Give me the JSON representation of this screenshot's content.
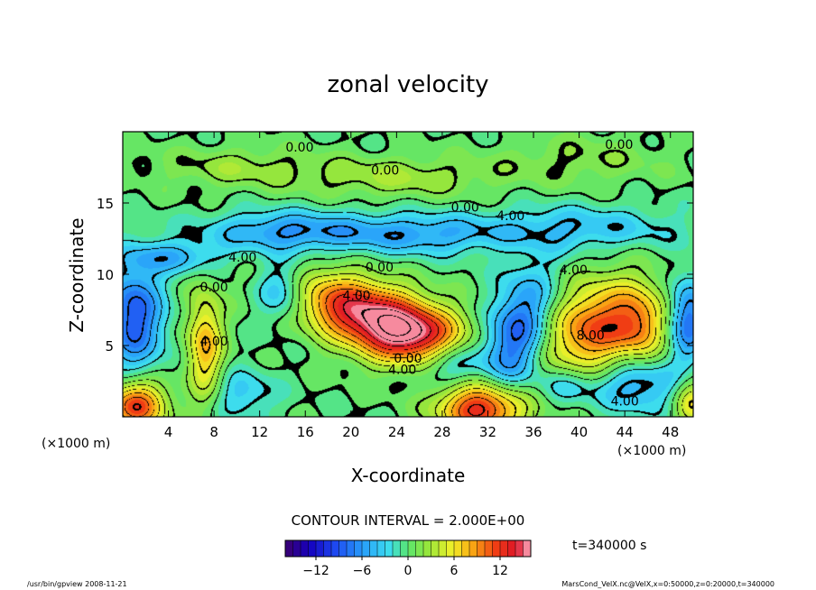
{
  "chart_data": {
    "type": "heatmap",
    "title": "zonal velocity",
    "xlabel": "X-coordinate",
    "ylabel": "Z-coordinate",
    "x_unit_left": "(×1000 m)",
    "x_unit_right": "(×1000 m)",
    "xlim": [
      0,
      50
    ],
    "ylim": [
      0,
      20
    ],
    "x_ticks": [
      4,
      8,
      12,
      16,
      20,
      24,
      28,
      32,
      36,
      40,
      44,
      48
    ],
    "y_ticks": [
      5,
      10,
      15
    ],
    "contour_interval_text": "CONTOUR INTERVAL = 2.000E+00",
    "time_text": "t=340000 s",
    "colorbar": {
      "range": [
        -16,
        16
      ],
      "ticks": [
        -12,
        -6,
        0,
        6,
        12
      ],
      "tick_labels": [
        "−12",
        "−6",
        "0",
        "6",
        "12"
      ],
      "levels": 32
    },
    "contour_labels": [
      {
        "text": "0.00",
        "x": 15.5,
        "y": 18.6
      },
      {
        "text": "0.00",
        "x": 23.0,
        "y": 17.0
      },
      {
        "text": "0.00",
        "x": 43.5,
        "y": 18.8
      },
      {
        "text": "0.00",
        "x": 30.0,
        "y": 14.4
      },
      {
        "text": "4.00",
        "x": 34.0,
        "y": 13.8
      },
      {
        "text": "4.00",
        "x": 10.5,
        "y": 10.9
      },
      {
        "text": "0.00",
        "x": 22.5,
        "y": 10.2
      },
      {
        "text": "4.00",
        "x": 39.5,
        "y": 10.0
      },
      {
        "text": "0.00",
        "x": 8.0,
        "y": 8.8
      },
      {
        "text": "4.00",
        "x": 8.0,
        "y": 5.0
      },
      {
        "text": "4.00",
        "x": 20.5,
        "y": 8.2
      },
      {
        "text": "8.00",
        "x": 41.0,
        "y": 5.4
      },
      {
        "text": "0.00",
        "x": 25.0,
        "y": 3.8
      },
      {
        "text": "4.00",
        "x": 24.5,
        "y": 3.0
      },
      {
        "text": "4.00",
        "x": 44.0,
        "y": 0.8
      }
    ],
    "features": [
      {
        "kind": "max",
        "x": 21.5,
        "y": 7.2,
        "value": 15.0,
        "sx": 4.5,
        "sy": 1.6,
        "rot": -12
      },
      {
        "kind": "max",
        "x": 25.5,
        "y": 5.6,
        "value": 9.0,
        "sx": 3.0,
        "sy": 1.4,
        "rot": 0
      },
      {
        "kind": "max",
        "x": 41.5,
        "y": 6.2,
        "value": 11.0,
        "sx": 3.2,
        "sy": 2.2,
        "rot": 20
      },
      {
        "kind": "max",
        "x": 45.5,
        "y": 6.3,
        "value": 6.0,
        "sx": 1.6,
        "sy": 1.8,
        "rot": 0
      },
      {
        "kind": "max",
        "x": 7.2,
        "y": 5.0,
        "value": 8.0,
        "sx": 1.1,
        "sy": 2.6,
        "rot": 0
      },
      {
        "kind": "max",
        "x": 31.5,
        "y": 0.6,
        "value": 14.0,
        "sx": 2.6,
        "sy": 1.3,
        "rot": 0
      },
      {
        "kind": "max",
        "x": 1.2,
        "y": 0.8,
        "value": 12.0,
        "sx": 1.8,
        "sy": 1.2,
        "rot": 0
      },
      {
        "kind": "max",
        "x": 49.8,
        "y": 1.0,
        "value": 6.0,
        "sx": 1.0,
        "sy": 1.2,
        "rot": 0
      },
      {
        "kind": "min",
        "x": 1.0,
        "y": 7.0,
        "value": -9.0,
        "sx": 1.8,
        "sy": 2.6,
        "rot": 0
      },
      {
        "kind": "min",
        "x": 14.5,
        "y": 13.0,
        "value": -6.0,
        "sx": 5.0,
        "sy": 1.0,
        "rot": 0
      },
      {
        "kind": "min",
        "x": 26.0,
        "y": 12.8,
        "value": -5.0,
        "sx": 5.0,
        "sy": 1.0,
        "rot": 0
      },
      {
        "kind": "min",
        "x": 40.0,
        "y": 13.2,
        "value": -4.0,
        "sx": 6.0,
        "sy": 1.1,
        "rot": 0
      },
      {
        "kind": "min",
        "x": 4.5,
        "y": 11.2,
        "value": -4.5,
        "sx": 3.0,
        "sy": 0.8,
        "rot": 0
      },
      {
        "kind": "min",
        "x": 14.0,
        "y": 8.8,
        "value": -6.0,
        "sx": 1.6,
        "sy": 1.5,
        "rot": 0
      },
      {
        "kind": "min",
        "x": 34.5,
        "y": 5.8,
        "value": -9.0,
        "sx": 1.8,
        "sy": 3.2,
        "rot": -25
      },
      {
        "kind": "min",
        "x": 28.5,
        "y": 3.8,
        "value": -5.0,
        "sx": 2.0,
        "sy": 1.2,
        "rot": 0
      },
      {
        "kind": "min",
        "x": 45.0,
        "y": 2.4,
        "value": -6.0,
        "sx": 2.5,
        "sy": 1.4,
        "rot": 0
      },
      {
        "kind": "min",
        "x": 39.0,
        "y": 2.2,
        "value": -4.0,
        "sx": 2.0,
        "sy": 1.0,
        "rot": 0
      },
      {
        "kind": "min",
        "x": 10.5,
        "y": 1.6,
        "value": -3.5,
        "sx": 2.0,
        "sy": 1.2,
        "rot": 0
      },
      {
        "kind": "min",
        "x": 49.5,
        "y": 6.8,
        "value": -8.0,
        "sx": 1.2,
        "sy": 2.0,
        "rot": 0
      },
      {
        "kind": "max",
        "x": 24.0,
        "y": 16.8,
        "value": 3.0,
        "sx": 6.0,
        "sy": 1.0,
        "rot": 0
      },
      {
        "kind": "max",
        "x": 10.0,
        "y": 17.5,
        "value": 2.5,
        "sx": 5.0,
        "sy": 1.0,
        "rot": 0
      },
      {
        "kind": "max",
        "x": 40.0,
        "y": 18.0,
        "value": 2.0,
        "sx": 5.0,
        "sy": 1.2,
        "rot": 0
      }
    ]
  },
  "footer": {
    "left": "/usr/bin/gpview   2008-11-21",
    "right": "MarsCond_VelX.nc@VelX,x=0:50000,z=0:20000,t=340000"
  }
}
